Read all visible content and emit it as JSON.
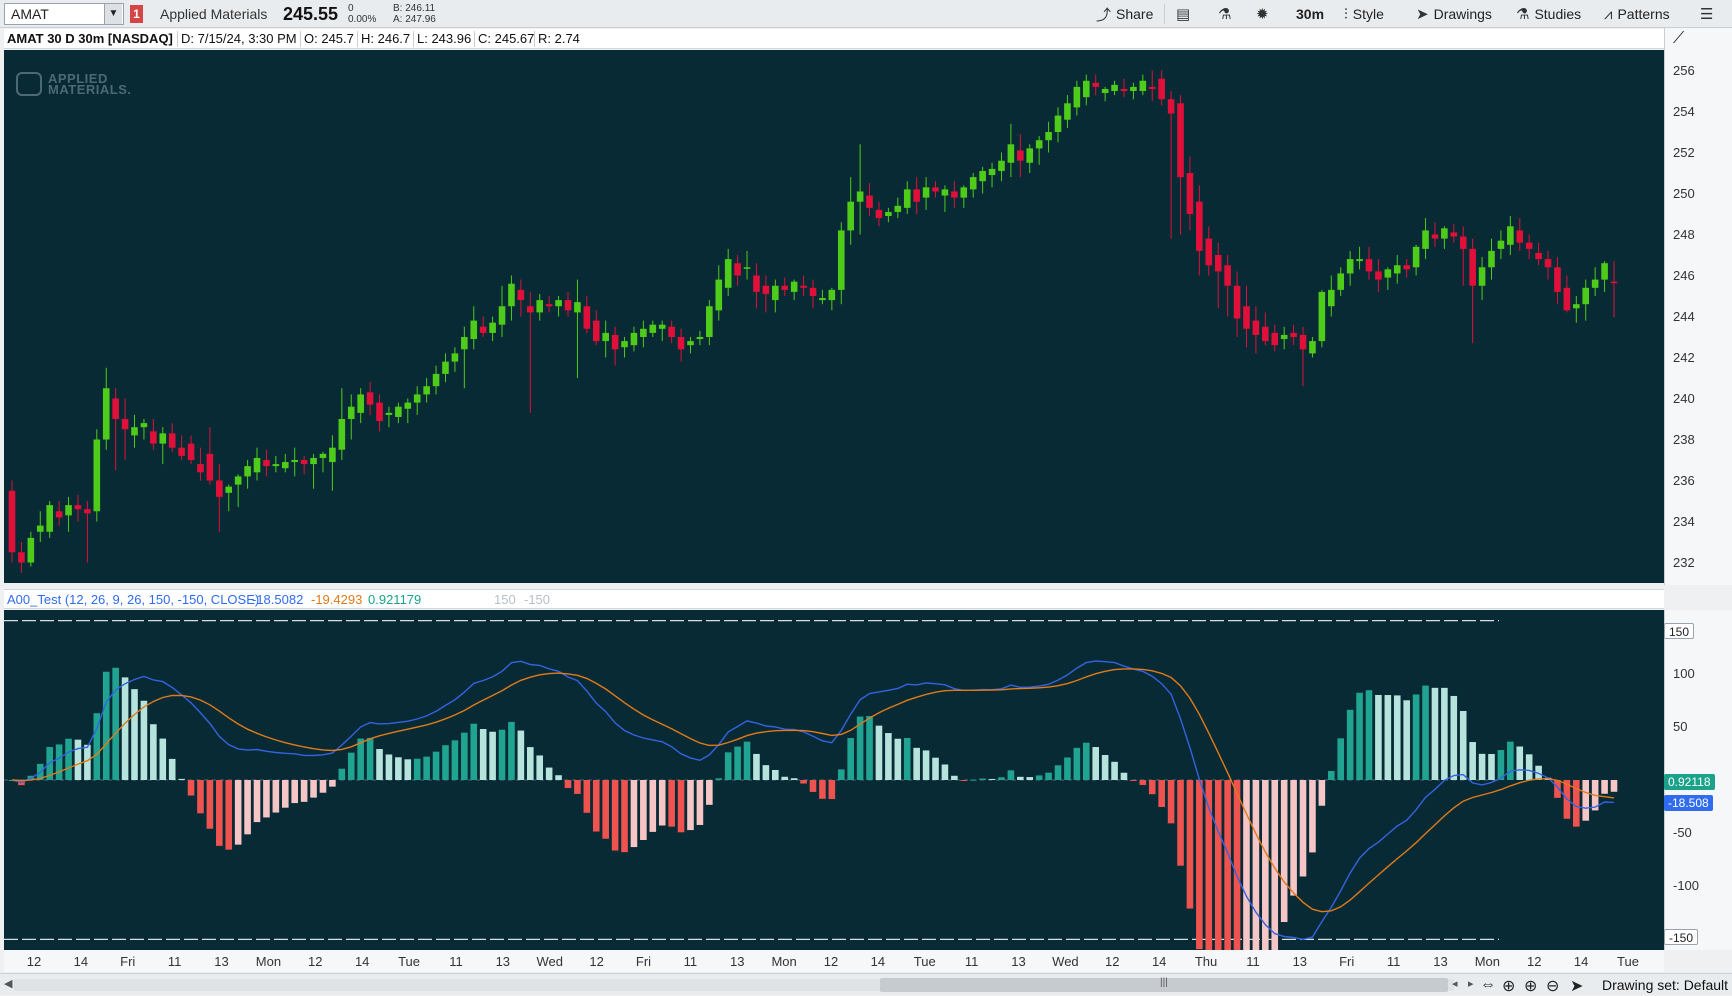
{
  "toolbar": {
    "symbol": "AMAT",
    "alert_count": "1",
    "company": "Applied Materials",
    "last_price": "245.55",
    "change": "0",
    "change_pct": "0.00%",
    "bid": "B: 246.11",
    "ask": "A: 247.96",
    "share_label": "Share",
    "interval_label": "30m",
    "style_label": "Style",
    "drawings_label": "Drawings",
    "studies_label": "Studies",
    "patterns_label": "Patterns"
  },
  "info": {
    "title": "AMAT 30 D 30m [NASDAQ]",
    "date": "D: 7/15/24, 3:30 PM",
    "open": "O: 245.7",
    "high": "H: 246.7",
    "low": "L: 243.96",
    "close": "C: 245.67",
    "range": "R: 2.74"
  },
  "study": {
    "name": "A00_Test (12, 26, 9, 26, 150, -150, CLOSE)",
    "v1": "-18.5082",
    "v2": "-19.4293",
    "v3": "0.921179",
    "v4": "150",
    "v5": "-150",
    "colors": {
      "v1": "#2f6cf0",
      "v2": "#e07b1a",
      "v3": "#1aa38a",
      "dim": "#b8c0c6"
    }
  },
  "price_axis_labels": [
    "256",
    "254",
    "252",
    "250",
    "248",
    "246",
    "244",
    "242",
    "240",
    "238",
    "236",
    "234",
    "232"
  ],
  "osc_axis_labels": [
    "100",
    "50",
    "-50",
    "-100"
  ],
  "osc_tags": {
    "upper": "150",
    "lower": "-150",
    "hist": "0.92118",
    "line": "-18.508"
  },
  "time_labels": [
    "12",
    "14",
    "Fri",
    "11",
    "13",
    "Mon",
    "12",
    "14",
    "Tue",
    "11",
    "13",
    "Wed",
    "12",
    "Fri",
    "11",
    "13",
    "Mon",
    "12",
    "14",
    "Tue",
    "11",
    "13",
    "Wed",
    "12",
    "14",
    "Thu",
    "11",
    "13",
    "Fri",
    "11",
    "13",
    "Mon",
    "12",
    "14",
    "Tue"
  ],
  "logo": {
    "line1": "APPLIED",
    "line2": "MATERIALS."
  },
  "statusbar": {
    "drawing_set": "Drawing set: Default"
  },
  "chart_data": {
    "type": "candlestick",
    "ylim": [
      231,
      257
    ],
    "colors": {
      "up": "#4fcc1a",
      "down": "#e0103a",
      "background": "#072a34"
    },
    "candles": [
      [
        235.5,
        236,
        232,
        232.5
      ],
      [
        232.5,
        233,
        231.5,
        232
      ],
      [
        232,
        233.5,
        231.8,
        233.2
      ],
      [
        233.5,
        234.5,
        233,
        233.8
      ],
      [
        233.5,
        235,
        233.2,
        234.8
      ],
      [
        234.5,
        235,
        233.8,
        234.2
      ],
      [
        234.3,
        235.2,
        233.5,
        234.8
      ],
      [
        234.8,
        235.3,
        234,
        234.6
      ],
      [
        234.6,
        235,
        232,
        234.4
      ],
      [
        234.5,
        238.5,
        234,
        238
      ],
      [
        238,
        241.5,
        237.5,
        240.5
      ],
      [
        240,
        240.5,
        236.5,
        239
      ],
      [
        239,
        240,
        237,
        238.5
      ],
      [
        238.2,
        239.2,
        237.6,
        238.6
      ],
      [
        238.6,
        239,
        238,
        238.8
      ],
      [
        238.4,
        239,
        237.5,
        237.8
      ],
      [
        237.8,
        238.6,
        236.8,
        238.3
      ],
      [
        238.3,
        238.8,
        237.4,
        237.6
      ],
      [
        237.6,
        238.2,
        237,
        237.2
      ],
      [
        237.8,
        238.2,
        236.8,
        237
      ],
      [
        236.8,
        237.6,
        236,
        236.4
      ],
      [
        237.3,
        238.6,
        235.8,
        236
      ],
      [
        236,
        236.8,
        233.5,
        235.2
      ],
      [
        235.4,
        235.8,
        234.5,
        235.7
      ],
      [
        235.8,
        236.3,
        234.7,
        236.2
      ],
      [
        236.2,
        237,
        235.6,
        236.7
      ],
      [
        236.4,
        237.6,
        236,
        237.1
      ],
      [
        237,
        237.5,
        236.2,
        236.7
      ],
      [
        236.7,
        237.2,
        236.4,
        236.8
      ],
      [
        236.6,
        237.3,
        236.4,
        236.9
      ],
      [
        236.9,
        237.6,
        236.2,
        237
      ],
      [
        237,
        237.2,
        236.3,
        236.8
      ],
      [
        236.8,
        237.3,
        235.6,
        237.1
      ],
      [
        237.1,
        237.4,
        236.4,
        237.3
      ],
      [
        236.9,
        238.2,
        235.5,
        237.6
      ],
      [
        237.5,
        240.5,
        237,
        239
      ],
      [
        239,
        240.2,
        238,
        239.6
      ],
      [
        239.3,
        240.5,
        238.8,
        240.2
      ],
      [
        240.3,
        240.8,
        239.2,
        239.7
      ],
      [
        239.8,
        240.2,
        238.4,
        238.9
      ],
      [
        239.2,
        239.6,
        238.6,
        239.3
      ],
      [
        239.1,
        239.8,
        238.8,
        239.6
      ],
      [
        239.5,
        240,
        238.8,
        239.8
      ],
      [
        239.8,
        240.6,
        239.2,
        240.2
      ],
      [
        240.2,
        241,
        239.8,
        240.6
      ],
      [
        240.6,
        241.6,
        240.2,
        241.2
      ],
      [
        241.2,
        242.2,
        240.8,
        241.8
      ],
      [
        241.8,
        242.5,
        241.3,
        242.2
      ],
      [
        242.4,
        243.5,
        240.5,
        243
      ],
      [
        242.9,
        244.5,
        242.4,
        243.8
      ],
      [
        243.5,
        244,
        243,
        243.2
      ],
      [
        243.2,
        244,
        242.8,
        243.7
      ],
      [
        243.6,
        245.5,
        243,
        244.5
      ],
      [
        244.5,
        246,
        243.8,
        245.6
      ],
      [
        245.3,
        245.8,
        244,
        244.8
      ],
      [
        244.5,
        245.2,
        239.3,
        244.2
      ],
      [
        244.2,
        245.1,
        243.8,
        244.8
      ],
      [
        244.6,
        245,
        244.2,
        244.5
      ],
      [
        244.5,
        245,
        244,
        244.8
      ],
      [
        244.8,
        245.2,
        244,
        244.3
      ],
      [
        244.2,
        245.8,
        241,
        244.7
      ],
      [
        244.5,
        245,
        243.2,
        243.4
      ],
      [
        243.8,
        244.3,
        242.6,
        242.8
      ],
      [
        242.8,
        243.8,
        242,
        243.2
      ],
      [
        243.1,
        243.5,
        241.6,
        242.4
      ],
      [
        242.5,
        243,
        242,
        242.8
      ],
      [
        242.6,
        243.5,
        242.3,
        243.2
      ],
      [
        243,
        243.8,
        242.5,
        243.4
      ],
      [
        243.2,
        243.8,
        243,
        243.6
      ],
      [
        243.4,
        243.8,
        242.8,
        243.6
      ],
      [
        243.5,
        243.8,
        242.7,
        243
      ],
      [
        243,
        243.4,
        241.8,
        242.4
      ],
      [
        242.6,
        243,
        242.2,
        242.8
      ],
      [
        242.9,
        243.3,
        242.6,
        243
      ],
      [
        243,
        244.8,
        242.6,
        244.5
      ],
      [
        244.3,
        246.5,
        243.8,
        245.8
      ],
      [
        245.4,
        247.3,
        245,
        246.8
      ],
      [
        246.6,
        247,
        245.5,
        246
      ],
      [
        246.4,
        247.2,
        245.8,
        246.4
      ],
      [
        246,
        246.6,
        244.4,
        245.2
      ],
      [
        245.5,
        246,
        244.2,
        245.1
      ],
      [
        244.8,
        245.8,
        244.2,
        245.5
      ],
      [
        245.5,
        245.9,
        245,
        245.3
      ],
      [
        245.2,
        245.8,
        244.8,
        245.7
      ],
      [
        245.5,
        246,
        245,
        245.4
      ],
      [
        245.4,
        245.8,
        244.4,
        245.0
      ],
      [
        244.8,
        245.3,
        244.6,
        244.9
      ],
      [
        244.8,
        245.4,
        244.3,
        245.3
      ],
      [
        245.3,
        248.6,
        244.6,
        248.2
      ],
      [
        248.2,
        250.8,
        247.5,
        249.6
      ],
      [
        249.6,
        252.4,
        248,
        250.1
      ],
      [
        249.9,
        250.5,
        248.9,
        249.3
      ],
      [
        249.2,
        249.6,
        248.4,
        248.8
      ],
      [
        248.9,
        249.3,
        248.6,
        249.1
      ],
      [
        249.1,
        249.8,
        248.8,
        249.4
      ],
      [
        249.3,
        250.6,
        249,
        250.2
      ],
      [
        250.2,
        250.8,
        249,
        249.6
      ],
      [
        249.8,
        250.8,
        249.2,
        250.3
      ],
      [
        250.3,
        250.6,
        249.8,
        250.1
      ],
      [
        249.9,
        250.4,
        249.1,
        250.2
      ],
      [
        250.1,
        250.6,
        249.3,
        249.8
      ],
      [
        249.8,
        250.4,
        249.3,
        250.3
      ],
      [
        250.2,
        251,
        249.8,
        250.8
      ],
      [
        250.6,
        251.3,
        250,
        251.1
      ],
      [
        250.9,
        251.5,
        250.3,
        251.2
      ],
      [
        251.1,
        252,
        250.6,
        251.6
      ],
      [
        251.5,
        253.4,
        250.8,
        252.4
      ],
      [
        252.1,
        252.9,
        250.8,
        251.6
      ],
      [
        251.5,
        252.4,
        251,
        252.2
      ],
      [
        252.2,
        252.8,
        251.4,
        252.6
      ],
      [
        252.6,
        253.5,
        252,
        253
      ],
      [
        253,
        254.2,
        252.5,
        253.8
      ],
      [
        253.6,
        254.8,
        253.2,
        254.4
      ],
      [
        254.2,
        255.5,
        253.8,
        255.2
      ],
      [
        254.7,
        255.8,
        254.3,
        255.5
      ],
      [
        255.4,
        255.8,
        254.8,
        255.2
      ],
      [
        254.9,
        255.2,
        254.5,
        255.1
      ],
      [
        255,
        255.5,
        254.8,
        255.3
      ],
      [
        255.1,
        255.6,
        254.7,
        255
      ],
      [
        255,
        255.4,
        254.6,
        255.2
      ],
      [
        255,
        255.8,
        254.8,
        255.5
      ],
      [
        255.2,
        256,
        254.5,
        255.1
      ],
      [
        255.6,
        256,
        254.3,
        254.6
      ],
      [
        254.6,
        255,
        247.8,
        253.9
      ],
      [
        254.4,
        254.8,
        248,
        250.8
      ],
      [
        251,
        251.8,
        248.2,
        249
      ],
      [
        249.6,
        250.4,
        246,
        247.2
      ],
      [
        247.8,
        248.4,
        246,
        246.5
      ],
      [
        247,
        247.6,
        244.4,
        246.2
      ],
      [
        246.5,
        247,
        244,
        245.5
      ],
      [
        245.5,
        246.2,
        243,
        243.9
      ],
      [
        244.5,
        245.5,
        242.5,
        243.4
      ],
      [
        243.8,
        244.5,
        242.2,
        243.1
      ],
      [
        243.5,
        244.2,
        242.6,
        242.8
      ],
      [
        243.2,
        243.6,
        242.3,
        242.6
      ],
      [
        242.9,
        243.5,
        242.4,
        243.1
      ],
      [
        243.2,
        243.6,
        242.6,
        243
      ],
      [
        243.1,
        243.5,
        240.6,
        242.4
      ],
      [
        242.2,
        243,
        242,
        242.8
      ],
      [
        242.8,
        245.3,
        242.5,
        245.2
      ],
      [
        244.5,
        246,
        244,
        245.3
      ],
      [
        245.3,
        246.4,
        245,
        246.1
      ],
      [
        246.1,
        247.2,
        245.5,
        246.8
      ],
      [
        246.7,
        247.4,
        246.3,
        246.8
      ],
      [
        246.8,
        247.4,
        245.8,
        246.2
      ],
      [
        246.2,
        246.8,
        245.2,
        245.8
      ],
      [
        245.9,
        246.4,
        245.3,
        246.3
      ],
      [
        246.1,
        247,
        245.6,
        246.5
      ],
      [
        246.5,
        246.8,
        245.9,
        246.3
      ],
      [
        246.4,
        247.5,
        246,
        247.4
      ],
      [
        247.3,
        248.8,
        246.8,
        248.2
      ],
      [
        248,
        248.6,
        247.4,
        247.8
      ],
      [
        247.8,
        248.4,
        247.3,
        248.3
      ],
      [
        248.1,
        248.5,
        247.6,
        247.9
      ],
      [
        247.9,
        248.4,
        245.5,
        247.3
      ],
      [
        247.3,
        247.8,
        242.7,
        245.5
      ],
      [
        245.5,
        246.9,
        244.8,
        246.4
      ],
      [
        246.4,
        247.8,
        245.8,
        247.2
      ],
      [
        247.3,
        248.2,
        246.8,
        247.7
      ],
      [
        247.5,
        248.9,
        247,
        248.4
      ],
      [
        248.2,
        248.8,
        247.2,
        247.6
      ],
      [
        247.6,
        248,
        246.8,
        247.3
      ],
      [
        247.1,
        247.6,
        246.5,
        246.8
      ],
      [
        246.8,
        247.2,
        245.8,
        246.4
      ],
      [
        246.4,
        246.9,
        244.6,
        245.2
      ],
      [
        245.4,
        246,
        244.2,
        244.3
      ],
      [
        244.4,
        245,
        243.7,
        244.6
      ],
      [
        244.6,
        245.8,
        243.8,
        245.4
      ],
      [
        245.4,
        246.4,
        245,
        245.8
      ],
      [
        245.8,
        246.7,
        245.2,
        246.6
      ],
      [
        245.7,
        246.7,
        243.96,
        245.67
      ]
    ],
    "osc": {
      "upper": 150,
      "lower": -150,
      "ylim": [
        -160,
        160
      ],
      "line_color": "#3563e0",
      "signal_color": "#e07b1a",
      "pos_up": "#21a392",
      "pos_down": "#b7e3dd",
      "neg_down": "#ef5350",
      "neg_up": "#f6c6c6"
    }
  }
}
